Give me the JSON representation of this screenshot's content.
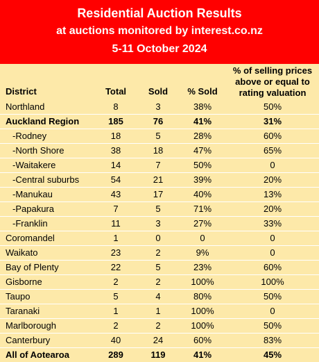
{
  "banner": {
    "title": "Residential Auction Results",
    "subtitle": "at auctions monitored by interest.co.nz",
    "dates": "5-11 October 2024"
  },
  "colors": {
    "banner_bg": "#ff0000",
    "table_bg": "#fde9a9"
  },
  "table": {
    "headers": {
      "district": "District",
      "total": "Total",
      "sold": "Sold",
      "pct_sold": "% Sold",
      "pct_above_lines": [
        "% of selling prices",
        "above or equal to",
        "rating valuation"
      ]
    },
    "rows": [
      {
        "district": "Northland",
        "total": "8",
        "sold": "3",
        "pct_sold": "38%",
        "pct_above": "50%",
        "bold": false,
        "sub": false
      },
      {
        "district": "Auckland Region",
        "total": "185",
        "sold": "76",
        "pct_sold": "41%",
        "pct_above": "31%",
        "bold": true,
        "sub": false
      },
      {
        "district": "-Rodney",
        "total": "18",
        "sold": "5",
        "pct_sold": "28%",
        "pct_above": "60%",
        "bold": false,
        "sub": true
      },
      {
        "district": "-North Shore",
        "total": "38",
        "sold": "18",
        "pct_sold": "47%",
        "pct_above": "65%",
        "bold": false,
        "sub": true
      },
      {
        "district": "-Waitakere",
        "total": "14",
        "sold": "7",
        "pct_sold": "50%",
        "pct_above": "0",
        "bold": false,
        "sub": true
      },
      {
        "district": "-Central suburbs",
        "total": "54",
        "sold": "21",
        "pct_sold": "39%",
        "pct_above": "20%",
        "bold": false,
        "sub": true
      },
      {
        "district": "-Manukau",
        "total": "43",
        "sold": "17",
        "pct_sold": "40%",
        "pct_above": "13%",
        "bold": false,
        "sub": true
      },
      {
        "district": "-Papakura",
        "total": "7",
        "sold": "5",
        "pct_sold": "71%",
        "pct_above": "20%",
        "bold": false,
        "sub": true
      },
      {
        "district": "-Franklin",
        "total": "11",
        "sold": "3",
        "pct_sold": "27%",
        "pct_above": "33%",
        "bold": false,
        "sub": true
      },
      {
        "district": "Coromandel",
        "total": "1",
        "sold": "0",
        "pct_sold": "0",
        "pct_above": "0",
        "bold": false,
        "sub": false
      },
      {
        "district": "Waikato",
        "total": "23",
        "sold": "2",
        "pct_sold": "9%",
        "pct_above": "0",
        "bold": false,
        "sub": false
      },
      {
        "district": "Bay of Plenty",
        "total": "22",
        "sold": "5",
        "pct_sold": "23%",
        "pct_above": "60%",
        "bold": false,
        "sub": false
      },
      {
        "district": "Gisborne",
        "total": "2",
        "sold": "2",
        "pct_sold": "100%",
        "pct_above": "100%",
        "bold": false,
        "sub": false
      },
      {
        "district": "Taupo",
        "total": "5",
        "sold": "4",
        "pct_sold": "80%",
        "pct_above": "50%",
        "bold": false,
        "sub": false
      },
      {
        "district": "Taranaki",
        "total": "1",
        "sold": "1",
        "pct_sold": "100%",
        "pct_above": "0",
        "bold": false,
        "sub": false
      },
      {
        "district": "Marlborough",
        "total": "2",
        "sold": "2",
        "pct_sold": "100%",
        "pct_above": "50%",
        "bold": false,
        "sub": false
      },
      {
        "district": "Canterbury",
        "total": "40",
        "sold": "24",
        "pct_sold": "60%",
        "pct_above": "83%",
        "bold": false,
        "sub": false
      },
      {
        "district": "All of Aotearoa",
        "total": "289",
        "sold": "119",
        "pct_sold": "41%",
        "pct_above": "45%",
        "bold": true,
        "sub": false
      }
    ]
  }
}
